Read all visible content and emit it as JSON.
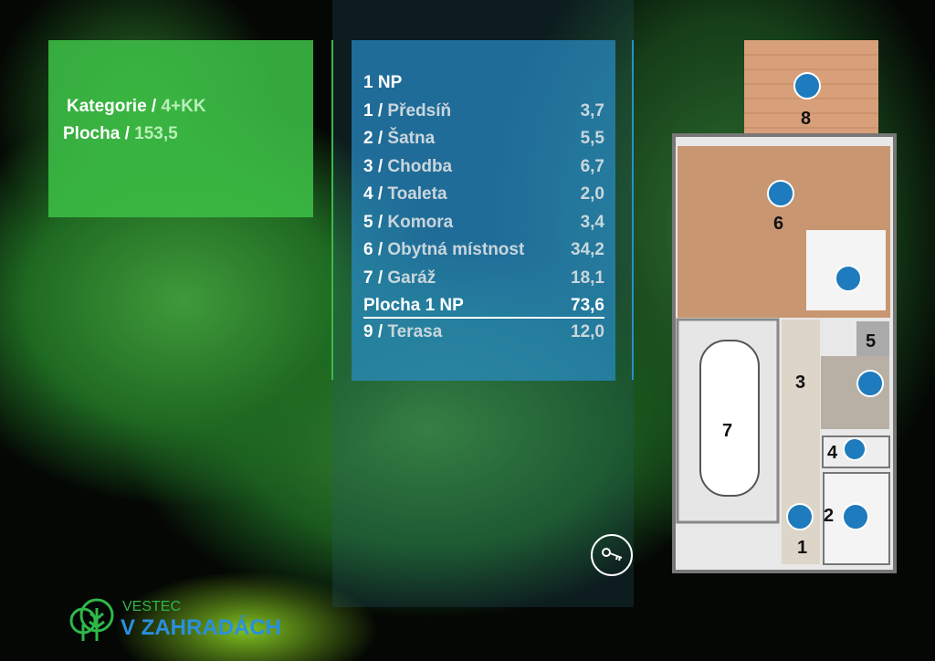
{
  "summary": {
    "category_label": "Kategorie /",
    "category_value": "4+KK",
    "area_label": "Plocha /",
    "area_value": "153,5"
  },
  "floor": {
    "title": "1 NP",
    "rooms": [
      {
        "label": "1 / ",
        "name": "Předsíň",
        "area": "3,7"
      },
      {
        "label": "2 / ",
        "name": "Šatna",
        "area": "5,5"
      },
      {
        "label": "3 / ",
        "name": "Chodba",
        "area": "6,7"
      },
      {
        "label": "4 / ",
        "name": "Toaleta",
        "area": "2,0"
      },
      {
        "label": "5 / ",
        "name": "Komora",
        "area": "3,4"
      },
      {
        "label": "6 / ",
        "name": "Obytná místnost",
        "area": "34,2"
      },
      {
        "label": "7 / ",
        "name": "Garáž",
        "area": "18,1"
      }
    ],
    "total_label": "Plocha 1 NP",
    "total_area": "73,6",
    "extra": {
      "label": "9 / ",
      "name": "Terasa",
      "area": "12,0"
    }
  },
  "plan_labels": {
    "r1": "1",
    "r2": "2",
    "r3": "3",
    "r4": "4",
    "r5": "5",
    "r6": "6",
    "r7": "7",
    "r8": "8"
  },
  "logo": {
    "line1": "VESTEC",
    "line2": "V ZAHRADÁCH"
  },
  "colors": {
    "green": "#3cbe46",
    "blue": "#288cc8",
    "line": "#2a8fc8"
  }
}
